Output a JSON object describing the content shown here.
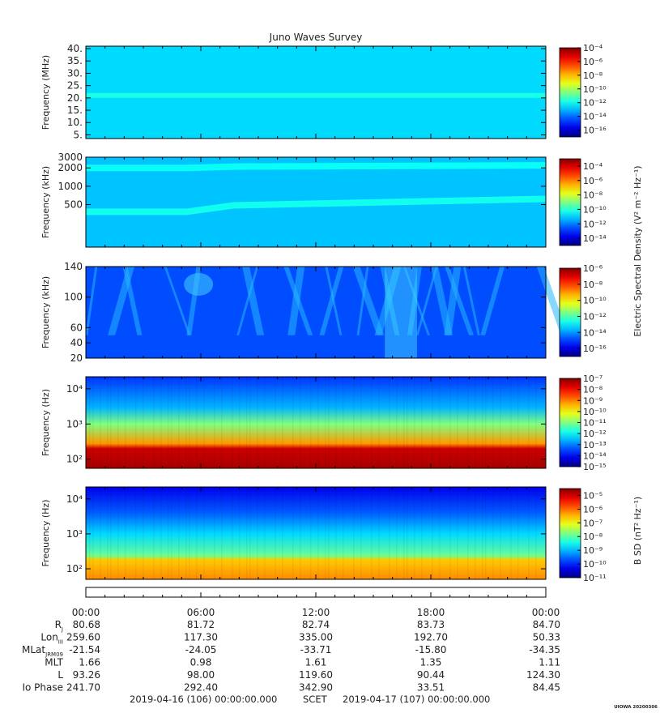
{
  "title": "Juno Waves Survey",
  "footer_stamp": "UIOWA 20200306",
  "colorbar_labels": {
    "electric": "Electric Spectral Density (V² m⁻² Hz⁻¹)",
    "magnetic": "B SD (nT² Hz⁻¹)"
  },
  "chart_data": [
    {
      "type": "heatmap",
      "name": "panel-1",
      "ylabel": "Frequency (MHz)",
      "yscale": "linear",
      "ylim": [
        3.5,
        41
      ],
      "ytick_values": [
        5,
        10,
        15,
        20,
        25,
        30,
        35,
        40
      ],
      "ytick_labels": [
        "5.",
        "10.",
        "15.",
        "20.",
        "25.",
        "30.",
        "35.",
        "40."
      ],
      "colorbar_exponents": [
        -16,
        -14,
        -12,
        -10,
        -8,
        -6,
        -4
      ],
      "colorbar_min_exp": -17,
      "colorbar_max_exp": -4,
      "background_exp": -12.6,
      "bands": [
        {
          "freq": 21,
          "level_exp": -11.8
        }
      ]
    },
    {
      "type": "heatmap",
      "name": "panel-2",
      "ylabel": "Frequency (kHz)",
      "yscale": "log",
      "ylim": [
        100,
        3000
      ],
      "ytick_values": [
        500,
        1000,
        2000,
        3000
      ],
      "ytick_labels": [
        "500",
        "1000",
        "2000",
        "3000"
      ],
      "colorbar_exponents": [
        -14,
        -12,
        -10,
        -8,
        -6,
        -4
      ],
      "colorbar_min_exp": -15,
      "colorbar_max_exp": -3,
      "background_exp": -11.2,
      "bands": [
        {
          "freq_start": 380,
          "freq_end": 620,
          "level_exp": -10.3
        },
        {
          "freq_start": 2000,
          "freq_end": 2200,
          "level_exp": -10.4
        }
      ]
    },
    {
      "type": "heatmap",
      "name": "panel-3",
      "ylabel": "Frequency (kHz)",
      "yscale": "linear",
      "ylim": [
        20,
        140
      ],
      "ytick_values": [
        20,
        40,
        60,
        100,
        140
      ],
      "ytick_labels": [
        "20",
        "40",
        "60",
        "100",
        "140"
      ],
      "colorbar_exponents": [
        -16,
        -14,
        -12,
        -10,
        -8,
        -6
      ],
      "colorbar_min_exp": -17,
      "colorbar_max_exp": -6,
      "background_exp": -14.8
    },
    {
      "type": "heatmap",
      "name": "panel-4",
      "ylabel": "Frequency (Hz)",
      "yscale": "log",
      "ylim": [
        55,
        22000
      ],
      "ytick_values": [
        100,
        1000,
        10000
      ],
      "ytick_labels": [
        "10²",
        "10³",
        "10⁴"
      ],
      "colorbar_exponents": [
        -15,
        -14,
        -13,
        -12,
        -11,
        -10,
        -9,
        -8,
        -7
      ],
      "colorbar_min_exp": -15,
      "colorbar_max_exp": -7,
      "profile": [
        [
          55,
          -7.3
        ],
        [
          200,
          -7.6
        ],
        [
          280,
          -9.2
        ],
        [
          1000,
          -11
        ],
        [
          3000,
          -12.6
        ],
        [
          22000,
          -13.6
        ]
      ]
    },
    {
      "type": "heatmap",
      "name": "panel-5",
      "ylabel": "Frequency (Hz)",
      "yscale": "log",
      "ylim": [
        50,
        22000
      ],
      "ytick_values": [
        100,
        1000,
        10000
      ],
      "ytick_labels": [
        "10²",
        "10³",
        "10⁴"
      ],
      "colorbar_exponents": [
        -11,
        -10,
        -9,
        -8,
        -7,
        -6,
        -5
      ],
      "colorbar_min_exp": -11,
      "colorbar_max_exp": -4.5,
      "profile": [
        [
          50,
          -6.2
        ],
        [
          180,
          -6.6
        ],
        [
          240,
          -7.9
        ],
        [
          1000,
          -8.8
        ],
        [
          4000,
          -9.6
        ],
        [
          22000,
          -10.3
        ]
      ]
    }
  ],
  "time_axis": {
    "ticks": [
      "00:00",
      "06:00",
      "12:00",
      "18:00",
      "00:00"
    ],
    "start_label": "2019-04-16 (106) 00:00:00.000",
    "center_label": "SCET",
    "end_label": "2019-04-17 (107) 00:00:00.000"
  },
  "ephemeris": [
    {
      "label": "R",
      "sub": "J",
      "values": [
        "80.68",
        "81.72",
        "82.74",
        "83.73",
        "84.70"
      ]
    },
    {
      "label": "Lon",
      "sub": "III",
      "values": [
        "259.60",
        "117.30",
        "335.00",
        "192.70",
        "50.33"
      ]
    },
    {
      "label": "MLat",
      "sub": "JRM09",
      "values": [
        "-21.54",
        "-24.05",
        "-33.71",
        "-15.80",
        "-34.35"
      ]
    },
    {
      "label": "MLT",
      "sub": "",
      "values": [
        "1.66",
        "0.98",
        "1.61",
        "1.35",
        "1.11"
      ]
    },
    {
      "label": "L",
      "sub": "",
      "values": [
        "93.26",
        "98.00",
        "119.60",
        "90.44",
        "124.30"
      ]
    },
    {
      "label": "Io Phase",
      "sub": "",
      "values": [
        "241.70",
        "292.40",
        "342.90",
        "33.51",
        "84.45"
      ]
    }
  ]
}
